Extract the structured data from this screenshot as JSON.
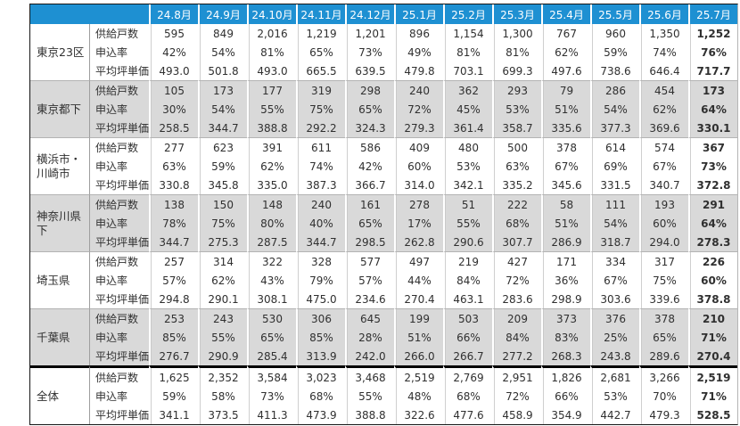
{
  "chart_data": {
    "type": "table",
    "columns": [
      "24.8月",
      "24.9月",
      "24.10月",
      "24.11月",
      "24.12月",
      "25.1月",
      "25.2月",
      "25.3月",
      "25.4月",
      "25.5月",
      "25.6月",
      "25.7月"
    ],
    "metrics": [
      "供給戸数",
      "申込率",
      "平均坪単価"
    ],
    "bold_column": "25.7月",
    "groups": [
      {
        "region": "東京23区",
        "shaded": false,
        "rows": [
          [
            "595",
            "849",
            "2,016",
            "1,219",
            "1,201",
            "896",
            "1,154",
            "1,300",
            "767",
            "960",
            "1,350",
            "1,252"
          ],
          [
            "42%",
            "54%",
            "81%",
            "65%",
            "73%",
            "49%",
            "81%",
            "81%",
            "62%",
            "59%",
            "74%",
            "76%"
          ],
          [
            "493.0",
            "501.8",
            "493.0",
            "665.5",
            "639.5",
            "479.8",
            "703.1",
            "699.3",
            "497.6",
            "738.6",
            "646.4",
            "717.7"
          ]
        ]
      },
      {
        "region": "東京都下",
        "shaded": true,
        "rows": [
          [
            "105",
            "173",
            "177",
            "319",
            "298",
            "240",
            "362",
            "293",
            "79",
            "286",
            "454",
            "173"
          ],
          [
            "30%",
            "54%",
            "55%",
            "75%",
            "65%",
            "72%",
            "45%",
            "53%",
            "51%",
            "54%",
            "62%",
            "64%"
          ],
          [
            "258.5",
            "344.7",
            "388.8",
            "292.2",
            "324.3",
            "279.3",
            "361.4",
            "358.7",
            "335.6",
            "377.3",
            "369.6",
            "330.1"
          ]
        ]
      },
      {
        "region": "横浜市・川崎市",
        "shaded": false,
        "rows": [
          [
            "277",
            "623",
            "391",
            "611",
            "586",
            "409",
            "480",
            "500",
            "378",
            "614",
            "574",
            "367"
          ],
          [
            "63%",
            "59%",
            "62%",
            "74%",
            "42%",
            "60%",
            "53%",
            "63%",
            "67%",
            "69%",
            "67%",
            "73%"
          ],
          [
            "330.8",
            "345.8",
            "335.0",
            "387.3",
            "366.7",
            "314.0",
            "342.1",
            "335.2",
            "345.6",
            "331.5",
            "340.7",
            "372.8"
          ]
        ]
      },
      {
        "region": "神奈川県下",
        "shaded": true,
        "rows": [
          [
            "138",
            "150",
            "148",
            "240",
            "161",
            "278",
            "51",
            "222",
            "58",
            "111",
            "193",
            "291"
          ],
          [
            "78%",
            "75%",
            "80%",
            "40%",
            "65%",
            "17%",
            "55%",
            "68%",
            "51%",
            "54%",
            "60%",
            "64%"
          ],
          [
            "344.7",
            "275.3",
            "287.5",
            "344.7",
            "298.5",
            "262.8",
            "290.6",
            "307.7",
            "286.9",
            "318.7",
            "294.0",
            "278.3"
          ]
        ]
      },
      {
        "region": "埼玉県",
        "shaded": false,
        "rows": [
          [
            "257",
            "314",
            "322",
            "328",
            "577",
            "497",
            "219",
            "427",
            "171",
            "334",
            "317",
            "226"
          ],
          [
            "57%",
            "62%",
            "43%",
            "79%",
            "57%",
            "44%",
            "84%",
            "72%",
            "36%",
            "67%",
            "75%",
            "60%"
          ],
          [
            "294.8",
            "290.1",
            "308.1",
            "475.0",
            "234.6",
            "270.4",
            "463.1",
            "283.6",
            "298.9",
            "303.6",
            "339.6",
            "378.8"
          ]
        ]
      },
      {
        "region": "千葉県",
        "shaded": true,
        "rows": [
          [
            "253",
            "243",
            "530",
            "306",
            "645",
            "199",
            "503",
            "209",
            "373",
            "376",
            "378",
            "210"
          ],
          [
            "85%",
            "55%",
            "65%",
            "85%",
            "28%",
            "51%",
            "66%",
            "84%",
            "83%",
            "25%",
            "65%",
            "71%"
          ],
          [
            "276.7",
            "290.9",
            "285.4",
            "313.9",
            "242.0",
            "266.0",
            "266.7",
            "277.2",
            "268.3",
            "243.8",
            "289.6",
            "270.4"
          ]
        ]
      },
      {
        "region": "全体",
        "shaded": false,
        "emphasized": true,
        "rows": [
          [
            "1,625",
            "2,352",
            "3,584",
            "3,023",
            "3,468",
            "2,519",
            "2,769",
            "2,951",
            "1,826",
            "2,681",
            "3,266",
            "2,519"
          ],
          [
            "59%",
            "58%",
            "73%",
            "68%",
            "55%",
            "48%",
            "68%",
            "72%",
            "66%",
            "53%",
            "70%",
            "71%"
          ],
          [
            "341.1",
            "373.5",
            "411.3",
            "473.9",
            "388.8",
            "322.6",
            "477.6",
            "458.9",
            "354.9",
            "442.7",
            "479.3",
            "528.5"
          ]
        ]
      }
    ],
    "colors": {
      "header_bg": "#1E90D2",
      "header_text": "#FFFFFF",
      "shaded_row_bg": "#D9D9D9",
      "emphasis_border": "#000000",
      "body_text": "#303030"
    },
    "layout": {
      "legend": "none",
      "grid": "column-separators-white",
      "title": ""
    }
  }
}
